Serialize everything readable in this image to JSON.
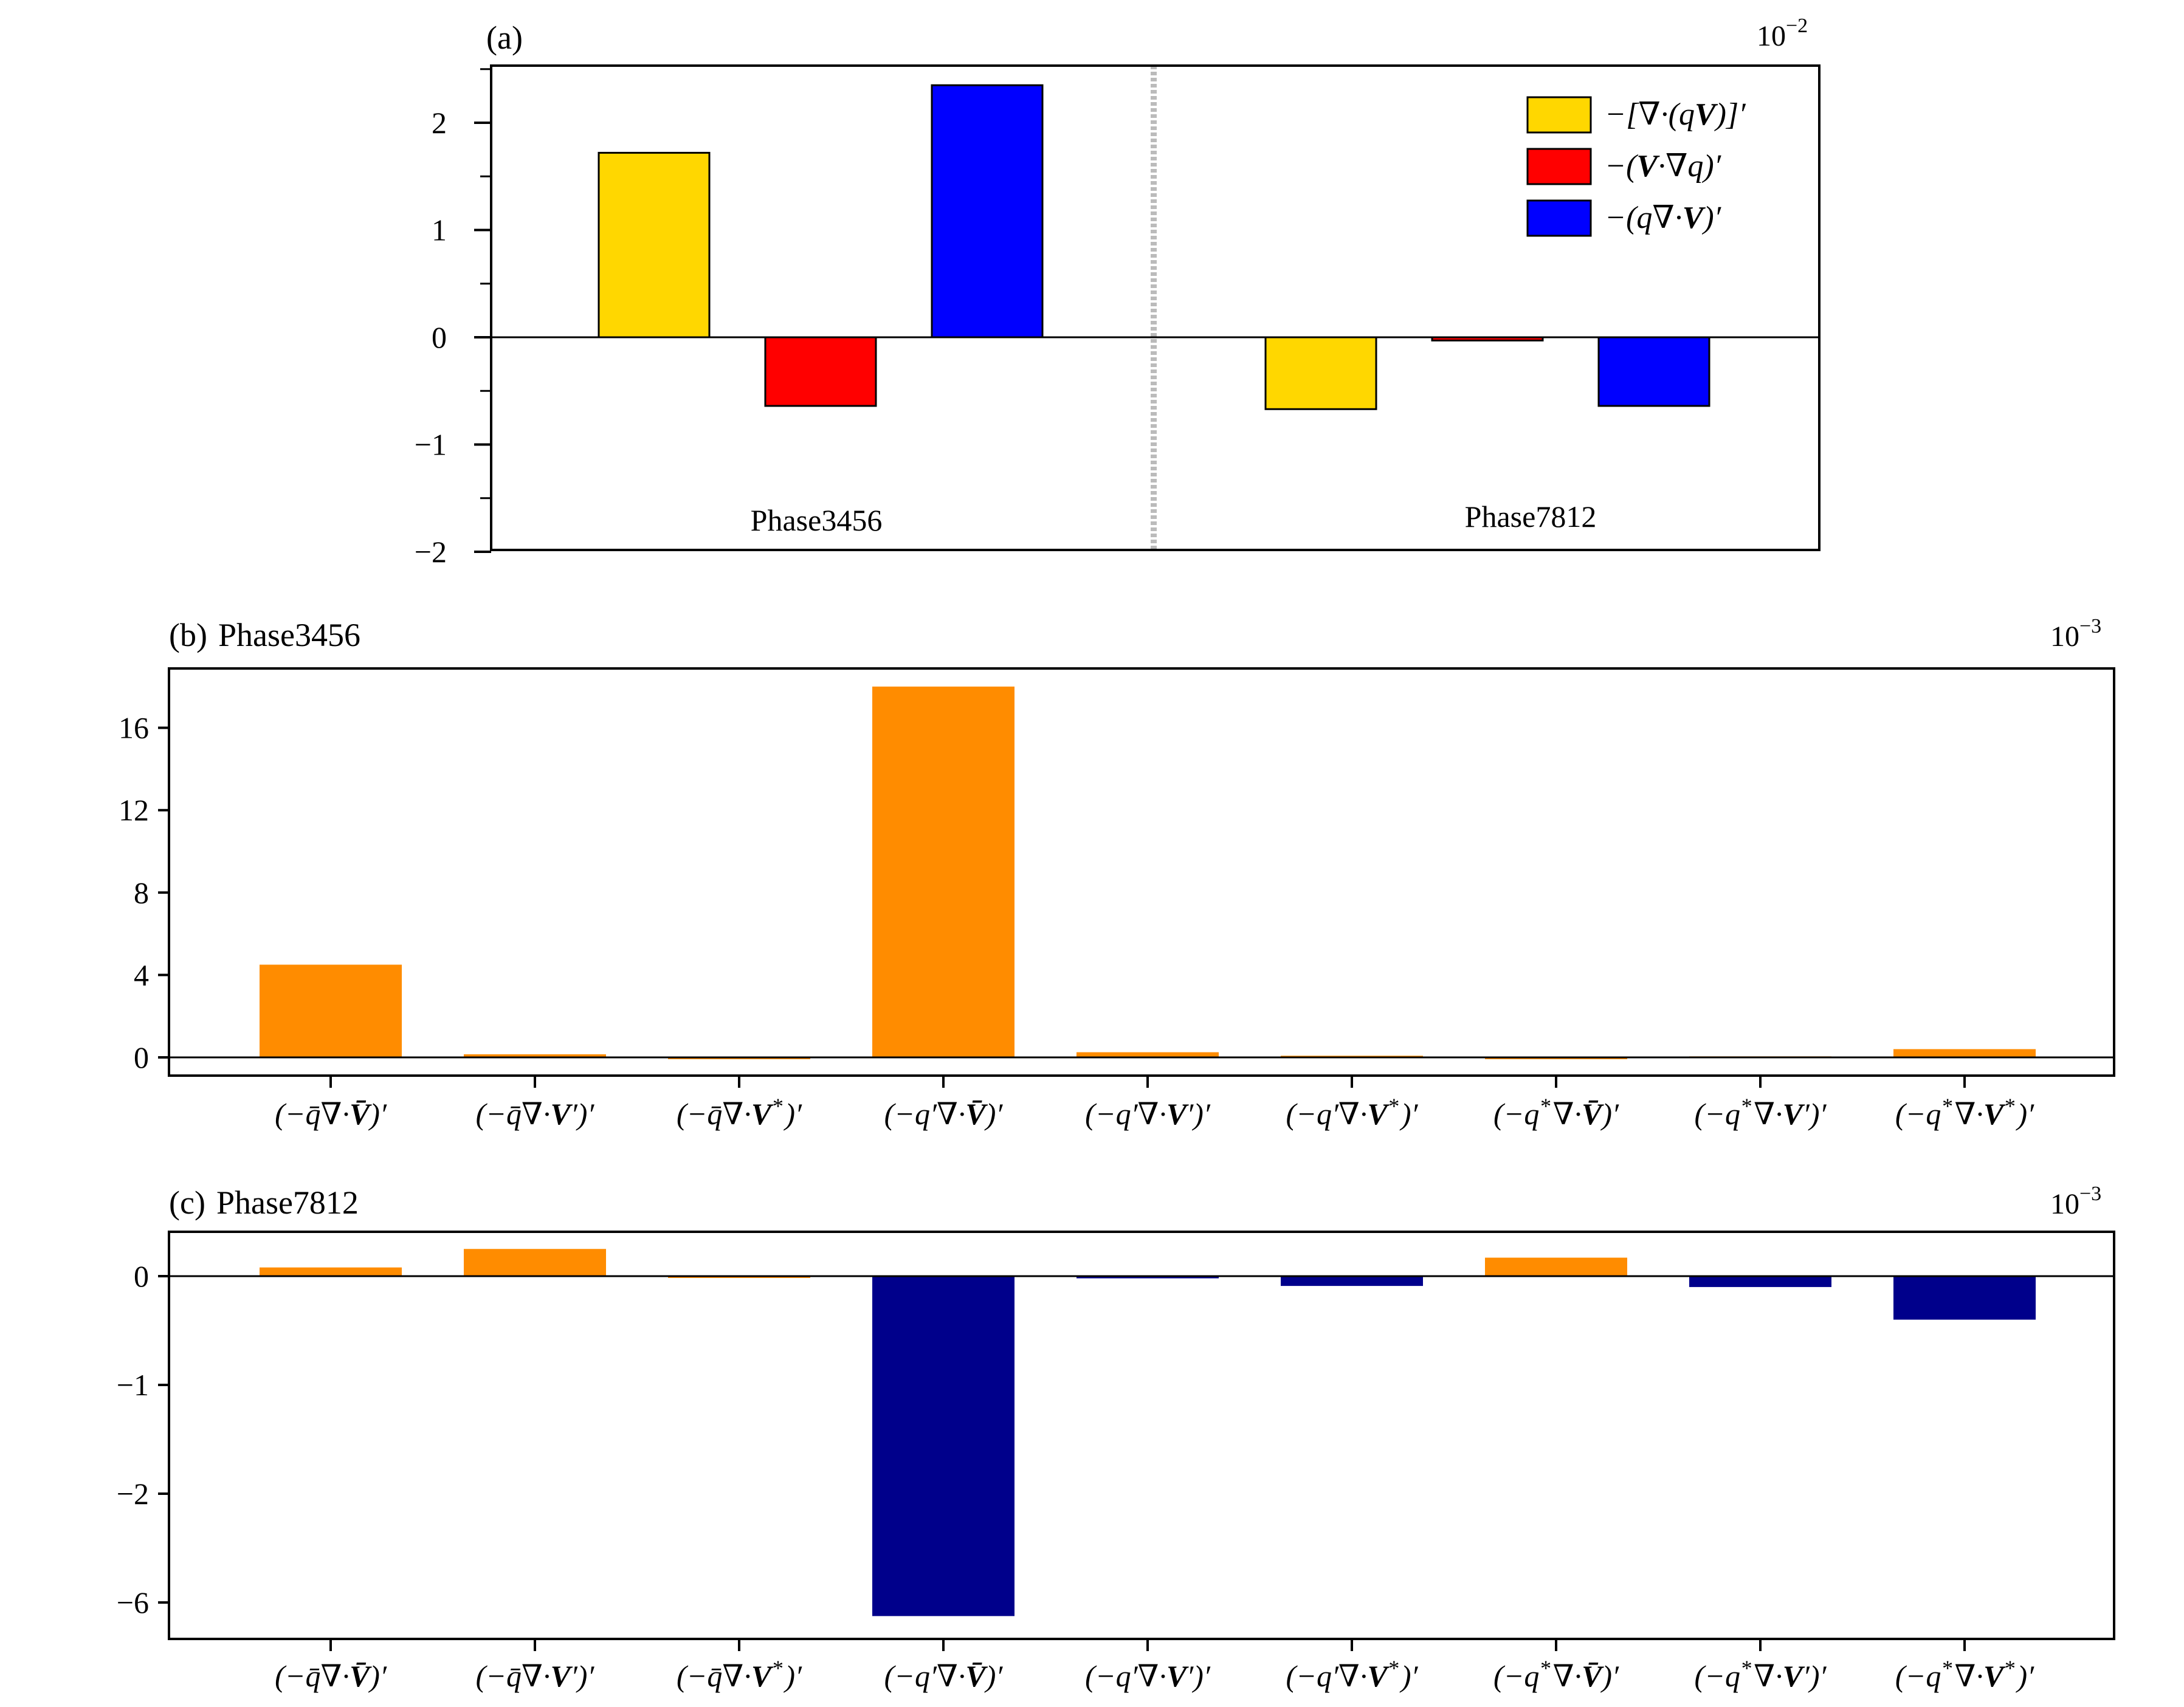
{
  "colors": {
    "yellow": "#FFD700",
    "red": "#FF0000",
    "blue": "#0000FF",
    "orange": "#FF8C00",
    "navy": "#00008B",
    "divider": "#BBBBBB"
  },
  "chart_data": [
    {
      "type": "bar",
      "panel": "(a)",
      "multiplier_base": "10",
      "multiplier_exp": "−2",
      "categories": [
        "Phase3456",
        "Phase7812"
      ],
      "series": [
        {
          "name": "−[∇·(qV)]′",
          "color": "#FFD700",
          "values": [
            1.72,
            -0.67
          ]
        },
        {
          "name": "−(V·∇q)′",
          "color": "#FF0000",
          "values": [
            -0.64,
            -0.03
          ]
        },
        {
          "name": "−(q∇·V)′",
          "color": "#0000FF",
          "values": [
            2.35,
            -0.64
          ]
        }
      ],
      "ylim": [
        -2,
        2.5
      ],
      "yticks": [
        2,
        1,
        0,
        -1,
        -2
      ],
      "ytick_labels": [
        "2",
        "1",
        "0",
        "−1",
        "−2"
      ],
      "legend": "top-right",
      "grid": false
    },
    {
      "type": "bar",
      "panel": "(b)",
      "title": "Phase3456",
      "multiplier_base": "10",
      "multiplier_exp": "−3",
      "categories": [
        "(−q̄∇·V̄)′",
        "(−q̄∇·V′)′",
        "(−q̄∇·V*)′",
        "(−q′∇·V̄)′",
        "(−q′∇·V′)′",
        "(−q′∇·V*)′",
        "(−q*∇·V̄)′",
        "(−q*∇·V′)′",
        "(−q*∇·V*)′"
      ],
      "values": [
        4.5,
        0.15,
        0.0,
        18.0,
        0.25,
        0.08,
        -0.08,
        0.05,
        0.4
      ],
      "bar_color": "#FF8C00",
      "ylim": [
        -1,
        19
      ],
      "yticks": [
        16,
        12,
        8,
        4,
        0
      ],
      "ytick_labels": [
        "16",
        "12",
        "8",
        "4",
        "0"
      ],
      "grid": false
    },
    {
      "type": "bar",
      "panel": "(c)",
      "title": "Phase7812",
      "multiplier_base": "10",
      "multiplier_exp": "−3",
      "categories": [
        "(−q̄∇·V̄)′",
        "(−q̄∇·V′)′",
        "(−q̄∇·V*)′",
        "(−q′∇·V̄)′",
        "(−q′∇·V′)′",
        "(−q′∇·V*)′",
        "(−q*∇·V̄)′",
        "(−q*∇·V′)′",
        "(−q*∇·V*)′"
      ],
      "values": [
        0.08,
        0.25,
        0.0,
        -6.5,
        -0.02,
        -0.09,
        0.17,
        -0.1,
        -0.4
      ],
      "positive_color": "#FF8C00",
      "negative_color": "#00008B",
      "yticks": [
        0,
        -1,
        -2,
        -6
      ],
      "ytick_labels": [
        "0",
        "−1",
        "−2",
        "−6"
      ],
      "axis_note": "broken scale: ticks 0, −1, −2 evenly spaced, then −6",
      "grid": false
    }
  ]
}
